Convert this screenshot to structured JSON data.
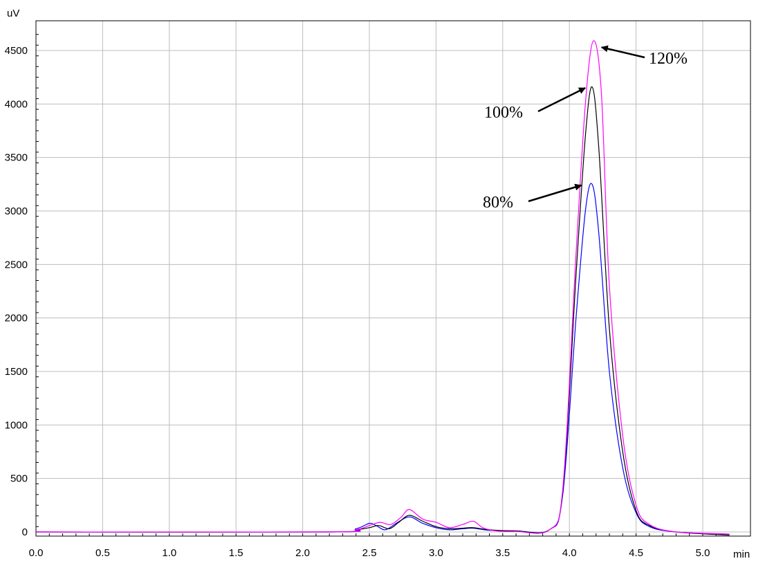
{
  "chart_data": {
    "type": "line",
    "xlabel": "min",
    "ylabel": "uV",
    "xlim": [
      0,
      5.2
    ],
    "ylim": [
      -50,
      4750
    ],
    "xticks": [
      "0.0",
      "0.5",
      "1.0",
      "1.5",
      "2.0",
      "2.5",
      "3.0",
      "3.5",
      "4.0",
      "4.5",
      "5.0"
    ],
    "yticks": [
      "0",
      "500",
      "1000",
      "1500",
      "2000",
      "2500",
      "3000",
      "3500",
      "4000",
      "4500"
    ],
    "grid": true,
    "series": [
      {
        "color": "#0000ff",
        "x": [
          0.0,
          2.2,
          2.4,
          2.5,
          2.55,
          2.62,
          2.7,
          2.8,
          2.9,
          3.0,
          3.1,
          3.2,
          3.28,
          3.4,
          3.6,
          3.85,
          3.95,
          4.05,
          4.12,
          4.17,
          4.22,
          4.3,
          4.4,
          4.5,
          4.6,
          4.8,
          5.2
        ],
        "y": [
          0,
          0,
          30,
          80,
          60,
          20,
          80,
          140,
          80,
          40,
          20,
          30,
          35,
          15,
          10,
          20,
          350,
          2000,
          3000,
          3250,
          2800,
          1500,
          600,
          180,
          50,
          0,
          -20
        ]
      },
      {
        "color": "#000000",
        "x": [
          0.0,
          2.2,
          2.4,
          2.5,
          2.57,
          2.65,
          2.72,
          2.8,
          2.9,
          3.0,
          3.1,
          3.2,
          3.28,
          3.4,
          3.6,
          3.85,
          3.95,
          4.05,
          4.12,
          4.17,
          4.22,
          4.3,
          4.4,
          4.5,
          4.6,
          4.8,
          5.2
        ],
        "y": [
          0,
          0,
          20,
          40,
          60,
          30,
          90,
          155,
          100,
          50,
          30,
          35,
          40,
          20,
          10,
          20,
          380,
          2400,
          3700,
          4160,
          3600,
          1900,
          750,
          200,
          60,
          0,
          -30
        ]
      },
      {
        "color": "#ff00ff",
        "x": [
          0.0,
          2.2,
          2.4,
          2.5,
          2.58,
          2.66,
          2.74,
          2.8,
          2.9,
          3.0,
          3.1,
          3.2,
          3.28,
          3.35,
          3.45,
          3.6,
          3.85,
          3.95,
          4.05,
          4.12,
          4.18,
          4.24,
          4.3,
          4.4,
          4.5,
          4.6,
          4.8,
          5.2
        ],
        "y": [
          0,
          0,
          20,
          60,
          90,
          70,
          140,
          210,
          120,
          90,
          40,
          70,
          100,
          40,
          10,
          5,
          20,
          400,
          2600,
          4000,
          4590,
          4100,
          2300,
          900,
          250,
          70,
          0,
          -20
        ]
      }
    ],
    "annotations": [
      {
        "text": "120%",
        "target_x": 4.2,
        "target_y": 4530
      },
      {
        "text": "100%",
        "target_x": 4.15,
        "target_y": 4150
      },
      {
        "text": "80%",
        "target_x": 4.12,
        "target_y": 3240
      }
    ]
  }
}
